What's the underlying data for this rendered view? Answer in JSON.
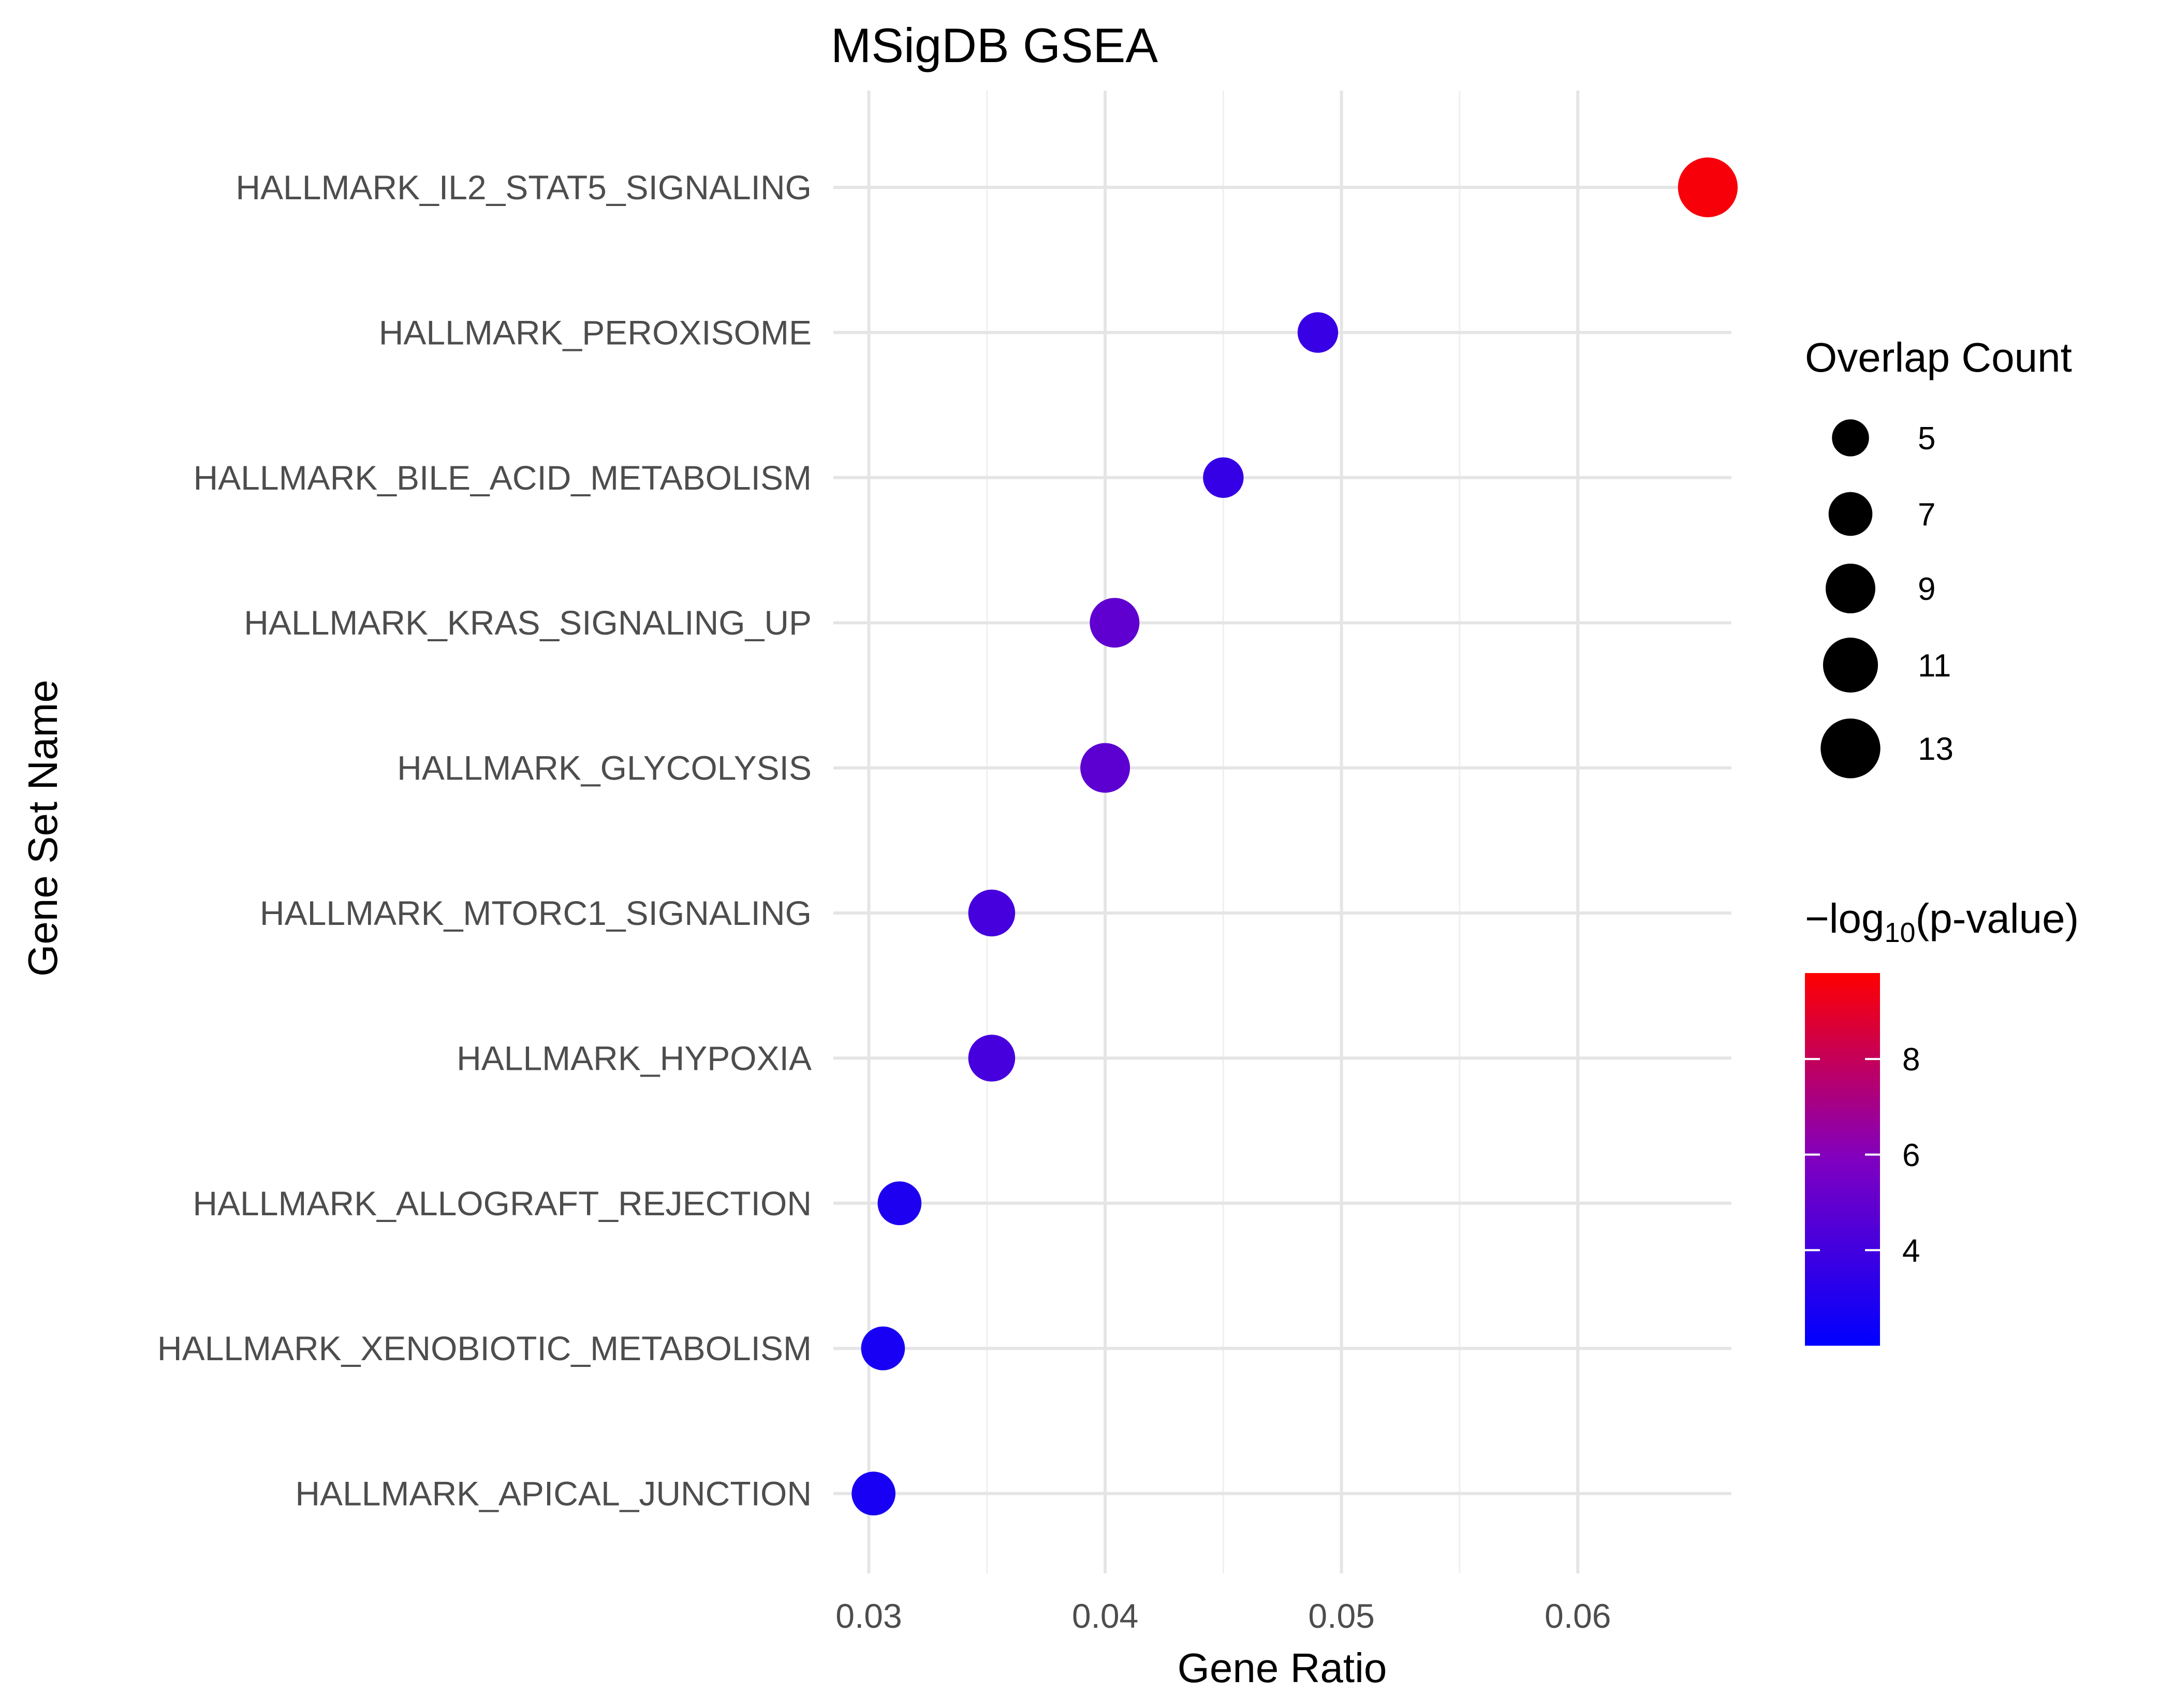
{
  "chart_data": {
    "type": "scatter",
    "title": "MSigDB GSEA",
    "xlabel": "Gene Ratio",
    "ylabel": "Gene Set Name",
    "xlim": [
      0.0285,
      0.0665
    ],
    "xticks": [
      0.03,
      0.04,
      0.05,
      0.06
    ],
    "xtick_labels": [
      "0.03",
      "0.04",
      "0.05",
      "0.06"
    ],
    "grid": true,
    "categories": [
      "HALLMARK_IL2_STAT5_SIGNALING",
      "HALLMARK_PEROXISOME",
      "HALLMARK_BILE_ACID_METABOLISM",
      "HALLMARK_KRAS_SIGNALING_UP",
      "HALLMARK_GLYCOLYSIS",
      "HALLMARK_MTORC1_SIGNALING",
      "HALLMARK_HYPOXIA",
      "HALLMARK_ALLOGRAFT_REJECTION",
      "HALLMARK_XENOBIOTIC_METABOLISM",
      "HALLMARK_APICAL_JUNCTION"
    ],
    "gene_ratio": [
      0.0655,
      0.049,
      0.045,
      0.0404,
      0.04,
      0.0352,
      0.0352,
      0.0313,
      0.0306,
      0.0302
    ],
    "overlap_count": [
      13,
      6,
      6,
      9,
      9,
      8,
      8,
      7,
      7,
      7
    ],
    "neg_log10_p": [
      9.6,
      3.7,
      3.6,
      4.9,
      4.8,
      4.1,
      4.1,
      2.9,
      2.7,
      2.7
    ],
    "size_legend": {
      "title": "Overlap Count",
      "values": [
        5,
        7,
        9,
        11,
        13
      ],
      "labels": [
        "5",
        "7",
        "9",
        "11",
        "13"
      ]
    },
    "color_legend": {
      "title_prefix": "−log",
      "title_sub": "10",
      "title_suffix": "(p-value)",
      "range": [
        2.0,
        9.8
      ],
      "ticks": [
        4,
        6,
        8
      ],
      "tick_labels": [
        "4",
        "6",
        "8"
      ],
      "low_color": "#0000ff",
      "high_color": "#ff0000"
    },
    "legend_position": "right"
  }
}
